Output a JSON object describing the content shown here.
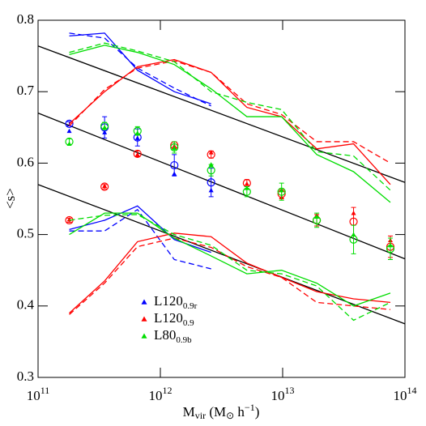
{
  "chart_data": {
    "type": "scatter",
    "xscale": "log",
    "xlim": [
      100000000000,
      100000000000000
    ],
    "ylim": [
      0.3,
      0.8
    ],
    "xticks": [
      {
        "value": 100000000000,
        "label": "10",
        "exponent": "11"
      },
      {
        "value": 1000000000000,
        "label": "10",
        "exponent": "12"
      },
      {
        "value": 10000000000000,
        "label": "10",
        "exponent": "13"
      },
      {
        "value": 100000000000000,
        "label": "10",
        "exponent": "14"
      }
    ],
    "yticks": [
      0.3,
      0.4,
      0.5,
      0.6,
      0.7,
      0.8
    ],
    "ylabel": "<s>",
    "xlabel": {
      "main": "M",
      "sub": "vir",
      "open": " (M",
      "sun": "⊙",
      "unit": " h",
      "exp": "−1",
      "close": ")"
    },
    "x": [
      180000000000,
      350000000000,
      650000000000,
      1300000000000,
      2600000000000,
      5100000000000,
      9800000000000,
      19000000000000,
      38000000000000,
      76000000000000
    ],
    "series": [
      {
        "name": "L120",
        "subscript": "0.9r",
        "color": "#0000ff",
        "triangles": [
          0.645,
          0.643,
          0.635,
          0.585,
          0.562,
          null,
          null,
          null,
          null,
          null
        ],
        "circles": [
          0.655,
          0.65,
          0.636,
          0.597,
          0.573,
          null,
          null,
          null,
          null,
          null
        ],
        "errors": [
          0.003,
          0.015,
          0.012,
          0.015,
          0.02,
          null,
          null,
          null,
          null,
          null
        ],
        "upper_solid": [
          0.778,
          0.782,
          0.73,
          0.7,
          0.683,
          null,
          null,
          null,
          null,
          null
        ],
        "upper_dashed": [
          0.782,
          0.775,
          0.733,
          0.705,
          0.68,
          null,
          null,
          null,
          null,
          null
        ],
        "lower_solid": [
          0.507,
          0.52,
          0.54,
          0.493,
          0.475,
          null,
          null,
          null,
          null,
          null
        ],
        "lower_dashed": [
          0.505,
          0.505,
          0.535,
          0.465,
          0.452,
          null,
          null,
          null,
          null,
          null
        ]
      },
      {
        "name": "L120",
        "subscript": "0.9",
        "color": "#ff0000",
        "triangles": [
          0.521,
          0.568,
          0.612,
          0.624,
          0.615,
          0.571,
          0.552,
          0.527,
          0.53,
          0.492
        ],
        "circles": [
          0.52,
          0.567,
          0.613,
          0.625,
          0.612,
          0.572,
          0.557,
          0.52,
          0.518,
          0.483
        ],
        "errors": [
          0.003,
          0.003,
          0.004,
          0.005,
          0.005,
          0.005,
          0.006,
          0.008,
          0.02,
          0.015
        ],
        "upper_solid": [
          0.655,
          0.7,
          0.735,
          0.745,
          0.727,
          0.678,
          0.665,
          0.62,
          0.627,
          0.57
        ],
        "upper_dashed": [
          0.652,
          0.703,
          0.733,
          0.743,
          0.727,
          0.683,
          0.668,
          0.63,
          0.63,
          0.6
        ],
        "lower_solid": [
          0.39,
          0.435,
          0.49,
          0.502,
          0.497,
          0.46,
          0.44,
          0.42,
          0.41,
          0.405
        ],
        "lower_dashed": [
          0.388,
          0.432,
          0.483,
          0.495,
          0.482,
          0.455,
          0.44,
          0.405,
          0.4,
          0.395
        ]
      },
      {
        "name": "L80",
        "subscript": "0.9b",
        "color": "#00dd00",
        "triangles": [
          0.627,
          0.65,
          0.642,
          0.621,
          0.598,
          0.565,
          0.562,
          0.525,
          0.5,
          0.485
        ],
        "circles": [
          0.63,
          0.652,
          0.645,
          0.622,
          0.59,
          0.56,
          0.56,
          0.52,
          0.493,
          0.48
        ],
        "errors": [
          0.004,
          0.005,
          0.006,
          0.008,
          0.008,
          0.007,
          0.012,
          0.01,
          0.02,
          0.015
        ],
        "upper_solid": [
          0.752,
          0.765,
          0.755,
          0.738,
          0.704,
          0.665,
          0.665,
          0.612,
          0.588,
          0.545
        ],
        "upper_dashed": [
          0.755,
          0.768,
          0.757,
          0.742,
          0.7,
          0.685,
          0.675,
          0.616,
          0.61,
          0.562
        ],
        "lower_solid": [
          0.5,
          0.53,
          0.53,
          0.495,
          0.47,
          0.445,
          0.45,
          0.432,
          0.4,
          0.418
        ],
        "lower_dashed": [
          0.52,
          0.527,
          0.528,
          0.5,
          0.485,
          0.45,
          0.445,
          0.428,
          0.38,
          0.405
        ]
      }
    ],
    "fits": [
      {
        "x": [
          100000000000,
          100000000000000
        ],
        "values": [
          0.764,
          0.573
        ],
        "color": "#000000"
      },
      {
        "x": [
          100000000000,
          100000000000000
        ],
        "values": [
          0.67,
          0.466
        ],
        "color": "#000000"
      },
      {
        "x": [
          100000000000,
          100000000000000
        ],
        "values": [
          0.57,
          0.375
        ],
        "color": "#000000"
      }
    ]
  }
}
